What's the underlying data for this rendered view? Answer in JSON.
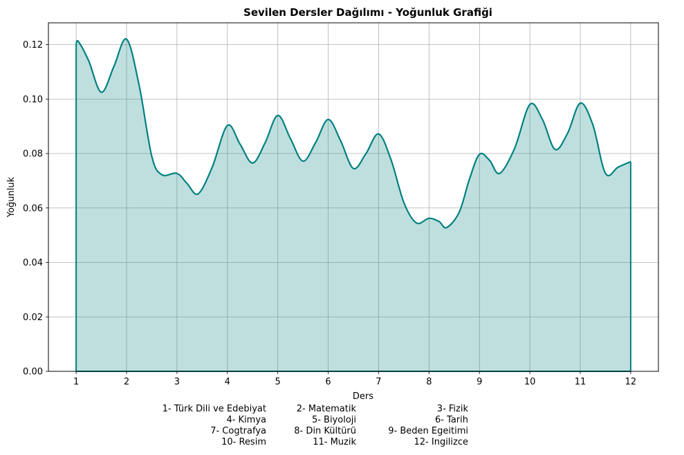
{
  "chart_data": {
    "type": "area",
    "title": "Sevilen Dersler Dağılımı - Yoğunluk Grafiği",
    "xlabel": "Ders",
    "ylabel": "Yoğunluk",
    "xlim": [
      0.45,
      12.55
    ],
    "ylim": [
      0,
      0.128
    ],
    "xticks": [
      "1",
      "2",
      "3",
      "4",
      "5",
      "6",
      "7",
      "8",
      "9",
      "10",
      "11",
      "12"
    ],
    "yticks": [
      "0.00",
      "0.02",
      "0.04",
      "0.06",
      "0.08",
      "0.10",
      "0.12"
    ],
    "grid": true,
    "line_color": "#008080",
    "fill_color": "#008080",
    "x": [
      1.0,
      1.05,
      1.25,
      1.5,
      1.75,
      2.0,
      2.25,
      2.5,
      2.7,
      3.0,
      3.2,
      3.42,
      3.7,
      4.0,
      4.25,
      4.5,
      4.75,
      5.0,
      5.25,
      5.5,
      5.75,
      6.0,
      6.25,
      6.5,
      6.75,
      7.0,
      7.25,
      7.5,
      7.75,
      8.0,
      8.2,
      8.35,
      8.6,
      8.8,
      9.0,
      9.2,
      9.4,
      9.7,
      10.0,
      10.25,
      10.5,
      10.75,
      11.0,
      11.25,
      11.5,
      11.75,
      12.0
    ],
    "y": [
      0.1205,
      0.121,
      0.114,
      0.1025,
      0.112,
      0.122,
      0.105,
      0.079,
      0.0722,
      0.0727,
      0.069,
      0.0652,
      0.075,
      0.0903,
      0.0835,
      0.0765,
      0.084,
      0.094,
      0.0855,
      0.0772,
      0.084,
      0.0925,
      0.0845,
      0.0745,
      0.08,
      0.0872,
      0.0775,
      0.062,
      0.0545,
      0.0562,
      0.055,
      0.0528,
      0.0585,
      0.0705,
      0.0797,
      0.0775,
      0.0727,
      0.082,
      0.098,
      0.0925,
      0.0815,
      0.0875,
      0.0985,
      0.0905,
      0.0727,
      0.075,
      0.077
    ]
  },
  "legend_rows": [
    [
      "1- Türk Dili ve Edebiyat",
      "2- Matematik",
      "3- Fizik"
    ],
    [
      "4- Kimya",
      "5- Biyoloji",
      "6- Tarih"
    ],
    [
      "7- Cogtrafya",
      "8- Din Kültürü",
      "9- Beden Egeitimi"
    ],
    [
      "10- Resim",
      "11- Muzik",
      "12- Ingilizce"
    ]
  ]
}
